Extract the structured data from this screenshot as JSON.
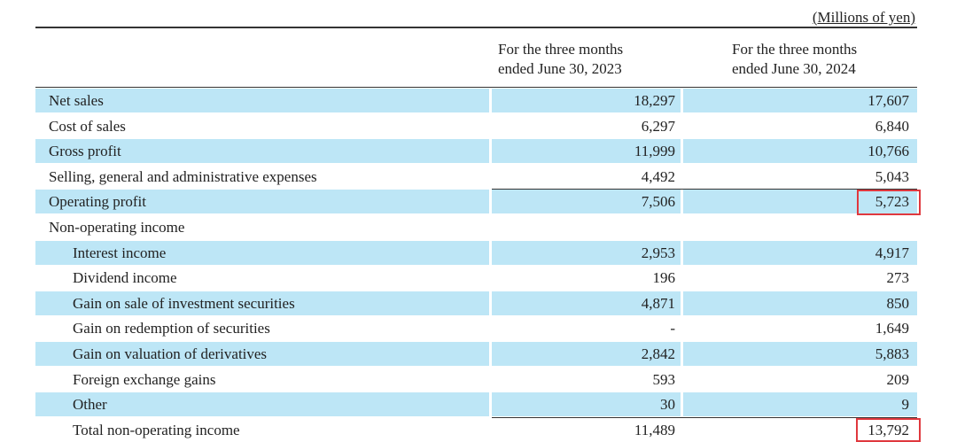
{
  "unit": "(Millions of yen)",
  "columns": [
    [
      "For the three months",
      "ended June 30, 2023"
    ],
    [
      "For the three months",
      "ended June 30, 2024"
    ]
  ],
  "rows": [
    [
      "Net sales",
      "18,297",
      "17,607"
    ],
    [
      "Cost of sales",
      "6,297",
      "6,840"
    ],
    [
      "Gross profit",
      "11,999",
      "10,766"
    ],
    [
      "Selling, general and administrative expenses",
      "4,492",
      "5,043"
    ],
    [
      "Operating profit",
      "7,506",
      "5,723"
    ]
  ],
  "non_operating": {
    "label": "Non-operating income",
    "rows": [
      [
        "Interest income",
        "2,953",
        "4,917"
      ],
      [
        "Dividend income",
        "196",
        "273"
      ],
      [
        "Gain on sale of investment securities",
        "4,871",
        "850"
      ],
      [
        "Gain on redemption of securities",
        "-",
        "1,649"
      ],
      [
        "Gain on valuation of derivatives",
        "2,842",
        "5,883"
      ],
      [
        "Foreign exchange gains",
        "593",
        "209"
      ],
      [
        "Other",
        "30",
        "9"
      ]
    ],
    "total": [
      "Total non-operating income",
      "11,489",
      "13,792"
    ]
  }
}
